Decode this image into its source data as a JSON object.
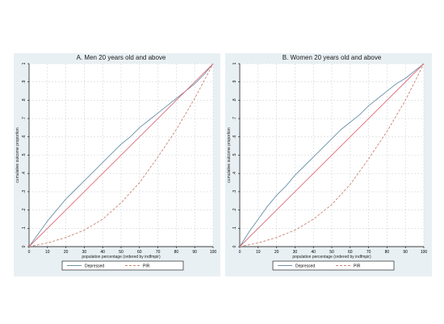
{
  "chart_data": [
    {
      "type": "line",
      "title": "A. Men 20 years old and above",
      "xlabel": "population percentage (ordered by indfmpir)",
      "ylabel": "cumulative outcome proportion",
      "xlim": [
        0,
        100
      ],
      "ylim": [
        0,
        1
      ],
      "xticks": [
        "0",
        "10",
        "20",
        "30",
        "40",
        "50",
        "60",
        "70",
        "80",
        "90",
        "100"
      ],
      "yticks": [
        "0",
        ".1",
        ".2",
        ".3",
        ".4",
        ".5",
        ".6",
        ".7",
        ".8",
        ".9",
        "1"
      ],
      "grid": true,
      "legend_position": "bottom",
      "series": [
        {
          "name": "Depressed",
          "color": "#6a8fa8",
          "style": "solid",
          "x": [
            0,
            5,
            10,
            15,
            20,
            25,
            30,
            35,
            40,
            45,
            50,
            55,
            60,
            65,
            70,
            75,
            80,
            85,
            90,
            95,
            100
          ],
          "y": [
            0,
            0.07,
            0.14,
            0.2,
            0.26,
            0.31,
            0.36,
            0.41,
            0.46,
            0.51,
            0.56,
            0.6,
            0.65,
            0.69,
            0.73,
            0.77,
            0.81,
            0.85,
            0.89,
            0.94,
            1
          ]
        },
        {
          "name": "",
          "color": "#e06b78",
          "style": "solid",
          "x": [
            0,
            100
          ],
          "y": [
            0,
            1
          ]
        },
        {
          "name": "PIR",
          "color": "#c8836f",
          "style": "dashed",
          "x": [
            0,
            10,
            20,
            30,
            40,
            50,
            60,
            70,
            80,
            90,
            100
          ],
          "y": [
            0,
            0.02,
            0.05,
            0.09,
            0.15,
            0.24,
            0.35,
            0.49,
            0.64,
            0.81,
            1
          ]
        }
      ]
    },
    {
      "type": "line",
      "title": "B. Women 20 years old and above",
      "xlabel": "population percentage (ordered by indfmpir)",
      "ylabel": "cumulative outcome proportion",
      "xlim": [
        0,
        100
      ],
      "ylim": [
        0,
        1
      ],
      "xticks": [
        "0",
        "10",
        "20",
        "30",
        "40",
        "50",
        "60",
        "70",
        "80",
        "90",
        "100"
      ],
      "yticks": [
        "0",
        ".1",
        ".2",
        ".3",
        ".4",
        ".5",
        ".6",
        ".7",
        ".8",
        ".9",
        "1"
      ],
      "grid": true,
      "legend_position": "bottom",
      "series": [
        {
          "name": "Depressed",
          "color": "#6a8fa8",
          "style": "solid",
          "x": [
            0,
            5,
            10,
            15,
            20,
            25,
            30,
            35,
            40,
            45,
            50,
            55,
            60,
            65,
            70,
            75,
            80,
            85,
            90,
            95,
            100
          ],
          "y": [
            0,
            0.08,
            0.15,
            0.22,
            0.28,
            0.33,
            0.39,
            0.44,
            0.49,
            0.54,
            0.59,
            0.64,
            0.68,
            0.72,
            0.77,
            0.81,
            0.85,
            0.89,
            0.92,
            0.96,
            1
          ]
        },
        {
          "name": "",
          "color": "#e06b78",
          "style": "solid",
          "x": [
            0,
            100
          ],
          "y": [
            0,
            1
          ]
        },
        {
          "name": "PIR",
          "color": "#c8836f",
          "style": "dashed",
          "x": [
            0,
            10,
            20,
            30,
            40,
            50,
            60,
            70,
            80,
            90,
            100
          ],
          "y": [
            0,
            0.02,
            0.05,
            0.09,
            0.15,
            0.23,
            0.34,
            0.48,
            0.63,
            0.8,
            1
          ]
        }
      ]
    }
  ]
}
